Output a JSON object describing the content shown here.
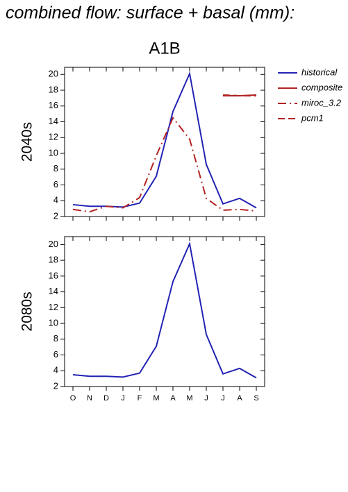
{
  "title": "combined flow: surface + basal (mm):",
  "chart_data": [
    {
      "type": "line",
      "title": "A1B",
      "y_label": "2040s",
      "ylim": [
        2,
        20.9
      ],
      "yticks": [
        2,
        4,
        6,
        8,
        10,
        12,
        14,
        16,
        18,
        20
      ],
      "series": [
        {
          "name": "historical",
          "color": "#2222b4",
          "dash": "solid",
          "values": [
            3.5,
            3.3,
            3.3,
            3.2,
            3.7,
            7.1,
            15.3,
            20.1,
            8.6,
            3.6,
            4.3,
            3.1
          ]
        },
        {
          "name": "composite",
          "color": "#b42222",
          "dash": "solid",
          "values": [
            null,
            null,
            null,
            null,
            null,
            null,
            null,
            null,
            null,
            17.3,
            17.3,
            17.4
          ]
        },
        {
          "name": "miroc_3.2",
          "color": "#b42222",
          "dash": "dashdot",
          "values": [
            2.9,
            2.6,
            3.3,
            3.1,
            4.4,
            9.7,
            14.5,
            11.8,
            4.3,
            2.8,
            2.9,
            2.7
          ]
        },
        {
          "name": "pcm1",
          "color": "#b42222",
          "dash": "dashed",
          "values": [
            null,
            null,
            null,
            null,
            null,
            null,
            null,
            null,
            null,
            17.4,
            17.3,
            17.3
          ]
        }
      ]
    },
    {
      "type": "line",
      "y_label": "2080s",
      "categories": [
        "O",
        "N",
        "D",
        "J",
        "F",
        "M",
        "A",
        "M",
        "J",
        "J",
        "A",
        "S"
      ],
      "ylim": [
        2,
        21
      ],
      "yticks": [
        2,
        4,
        6,
        8,
        10,
        12,
        14,
        16,
        18,
        20
      ],
      "series": [
        {
          "name": "historical",
          "color": "#2222b4",
          "dash": "solid",
          "values": [
            3.5,
            3.3,
            3.3,
            3.2,
            3.7,
            7.1,
            15.3,
            20.1,
            8.6,
            3.6,
            4.3,
            3.1
          ]
        }
      ]
    }
  ]
}
